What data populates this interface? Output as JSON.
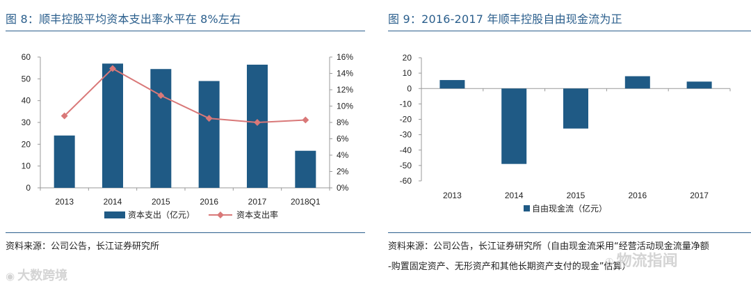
{
  "left_panel": {
    "title": "图 8：顺丰控股平均资本支出率水平在 8%左右",
    "source": "资料来源：公司公告，长江证券研究所"
  },
  "right_panel": {
    "title": "图 9：2016-2017 年顺丰控股自由现金流为正",
    "source_line1": "资料来源：公司公告，长江证券研究所（自由现金流采用“经营活动现金流量净额",
    "source_line2": "-购置固定资产、无形资产和其他长期资产支付的现金”估算）"
  },
  "watermarks": {
    "left_icon": "weibo-icon",
    "left_text": "大数跨境",
    "right_icon": "wechat-icon",
    "right_text": "物流指闻"
  },
  "colors": {
    "bar": "#1f5a85",
    "line": "#d97878",
    "title": "#2a5e8c",
    "axis": "#999999"
  },
  "chart_data": [
    {
      "type": "bar",
      "title": "",
      "categories": [
        "2013",
        "2014",
        "2015",
        "2016",
        "2017",
        "2018Q1"
      ],
      "series": [
        {
          "name": "资本支出（亿元）",
          "type": "bar",
          "axis": "left",
          "values": [
            24,
            57,
            54.5,
            49,
            56.5,
            17
          ]
        },
        {
          "name": "资本支出率",
          "type": "line",
          "axis": "right",
          "values": [
            8.8,
            14.6,
            11.3,
            8.5,
            8.0,
            8.3
          ]
        }
      ],
      "y_left": {
        "min": 0,
        "max": 60,
        "ticks": [
          "0",
          "10",
          "20",
          "30",
          "40",
          "50",
          "60"
        ]
      },
      "y_right": {
        "min": 0,
        "max": 16,
        "ticks": [
          "0%",
          "2%",
          "4%",
          "6%",
          "8%",
          "10%",
          "12%",
          "14%",
          "16%"
        ]
      },
      "legend": [
        "资本支出（亿元）",
        "资本支出率"
      ]
    },
    {
      "type": "bar",
      "title": "",
      "categories": [
        "2013",
        "2014",
        "2015",
        "2016",
        "2017"
      ],
      "series": [
        {
          "name": "自由现金流（亿元）",
          "values": [
            5.5,
            -49,
            -26,
            8,
            4.5
          ]
        }
      ],
      "y": {
        "min": -60,
        "max": 20,
        "ticks": [
          "20",
          "10",
          "0",
          "-10",
          "-20",
          "-30",
          "-40",
          "-50",
          "-60"
        ]
      },
      "legend": [
        "自由现金流（亿元）"
      ]
    }
  ]
}
